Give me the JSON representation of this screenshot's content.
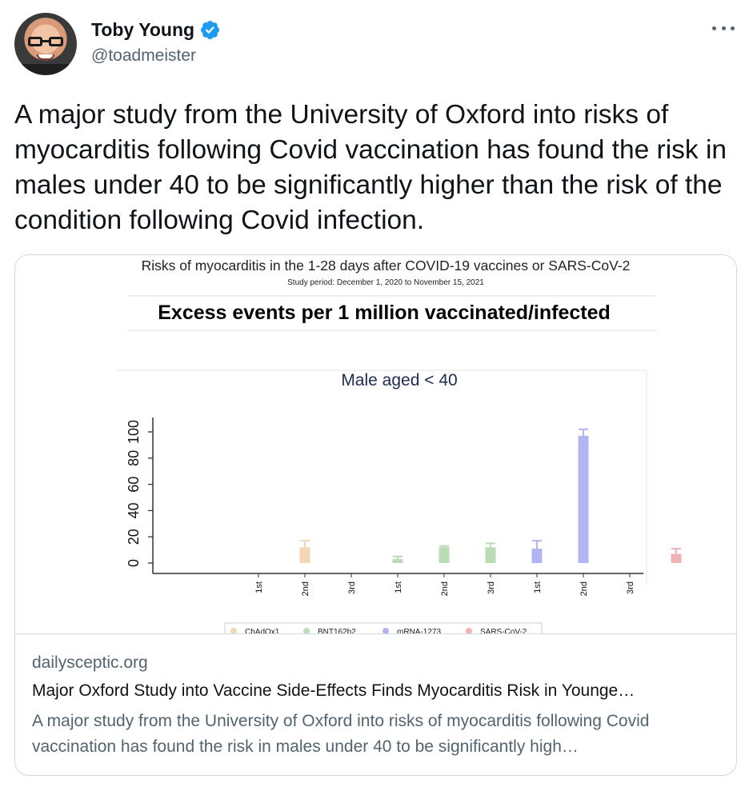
{
  "author": {
    "display_name": "Toby Young",
    "handle": "@toadmeister",
    "verified": true
  },
  "tweet": {
    "text": "A major study from the University of Oxford into risks of myocarditis following Covid vaccination has found the risk in males under 40 to be significantly higher than the risk of the condition following Covid infection."
  },
  "card": {
    "domain": "dailysceptic.org",
    "title": "Major Oxford Study into Vaccine Side-Effects Finds Myocarditis Risk in Younge…",
    "description": "A major study from the University of Oxford into risks of myocarditis following Covid vaccination has found the risk in males under 40 to be significantly high…"
  },
  "chart_data": {
    "type": "bar",
    "title": "Risks of myocarditis in the 1-28 days after COVID-19 vaccines or SARS-CoV-2",
    "subtitle": "Study period: December 1, 2020 to November 15, 2021",
    "heading": "Excess events per 1 million vaccinated/infected",
    "panel_title": "Male aged < 40",
    "y_ticks": [
      "0",
      "20",
      "40",
      "60",
      "80",
      "100"
    ],
    "y_tick_values": [
      0,
      20,
      40,
      60,
      80,
      100
    ],
    "ylim": [
      0,
      110
    ],
    "categories": [
      "1st",
      "2nd",
      "3rd",
      "1st",
      "2nd",
      "3rd",
      "1st",
      "2nd",
      "3rd",
      ""
    ],
    "bars": [
      {
        "category": "1st",
        "series": "ChAdOx1",
        "value": null
      },
      {
        "category": "2nd",
        "series": "ChAdOx1",
        "value": 12,
        "err": [
          8,
          17
        ]
      },
      {
        "category": "3rd",
        "series": "ChAdOx1",
        "value": null
      },
      {
        "category": "1st",
        "series": "BNT162b2",
        "value": 3,
        "err": [
          2,
          5
        ]
      },
      {
        "category": "2nd",
        "series": "BNT162b2",
        "value": 12,
        "err": [
          10,
          13
        ]
      },
      {
        "category": "3rd",
        "series": "BNT162b2",
        "value": 12,
        "err": [
          9,
          15
        ]
      },
      {
        "category": "1st",
        "series": "mRNA-1273",
        "value": 11,
        "err": [
          6,
          17
        ]
      },
      {
        "category": "2nd",
        "series": "mRNA-1273",
        "value": 97,
        "err": [
          91,
          102
        ]
      },
      {
        "category": "3rd",
        "series": "mRNA-1273",
        "value": null
      },
      {
        "category": "",
        "series": "SARS-CoV-2",
        "value": 7,
        "err": [
          3,
          11
        ]
      }
    ],
    "legend": [
      {
        "name": "ChAdOx1",
        "color": "#f5d7b5"
      },
      {
        "name": "BNT162b2",
        "color": "#b9dcb4"
      },
      {
        "name": "mRNA-1273",
        "color": "#b3b5f3"
      },
      {
        "name": "SARS-CoV-2",
        "color": "#efb3b6"
      }
    ],
    "legend_placement": "bottom",
    "grid": false
  },
  "colors": {
    "verified_blue": "#1d9bf0",
    "text_primary": "#0f1419",
    "text_secondary": "#536471",
    "card_border": "#cfd9de"
  }
}
